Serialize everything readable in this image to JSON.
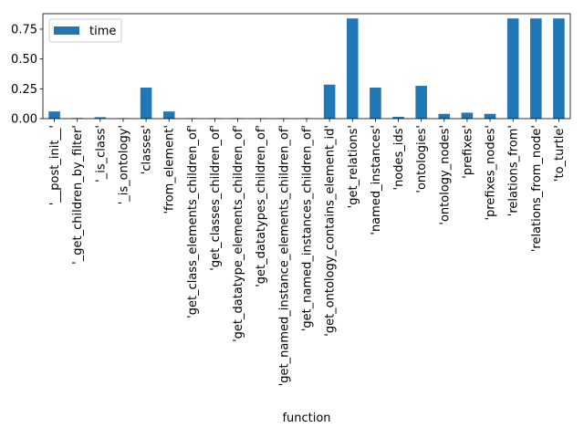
{
  "chart_data": {
    "type": "bar",
    "xlabel": "function",
    "ylabel": "",
    "ylim": [
      0,
      0.88
    ],
    "yticks": [
      "0.00",
      "0.25",
      "0.50",
      "0.75"
    ],
    "grid": false,
    "legend_position": "top-left",
    "categories": [
      "'__post_init__'",
      "'_get_children_by_filter'",
      "'_is_class'",
      "'_is_ontology'",
      "'classes'",
      "'from_element'",
      "'get_class_elements_children_of'",
      "'get_classes_children_of'",
      "'get_datatype_elements_children_of'",
      "'get_datatypes_children_of'",
      "'get_named_instance_elements_children_of'",
      "'get_named_instances_children_of'",
      "'get_ontology_contains_element_id'",
      "'get_relations'",
      "'named_instances'",
      "'nodes_ids'",
      "'ontologies'",
      "'ontology_nodes'",
      "'prefixes'",
      "'prefixes_nodes'",
      "'relations_from'",
      "'relations_from_node'",
      "'to_turtle'"
    ],
    "series": [
      {
        "name": "time",
        "color": "#1f77b4",
        "values": [
          0.06,
          0.005,
          0.012,
          0.004,
          0.26,
          0.06,
          0.004,
          0.004,
          0.004,
          0.004,
          0.004,
          0.004,
          0.285,
          0.84,
          0.26,
          0.015,
          0.275,
          0.04,
          0.05,
          0.04,
          0.84,
          0.84,
          0.84
        ]
      }
    ]
  }
}
